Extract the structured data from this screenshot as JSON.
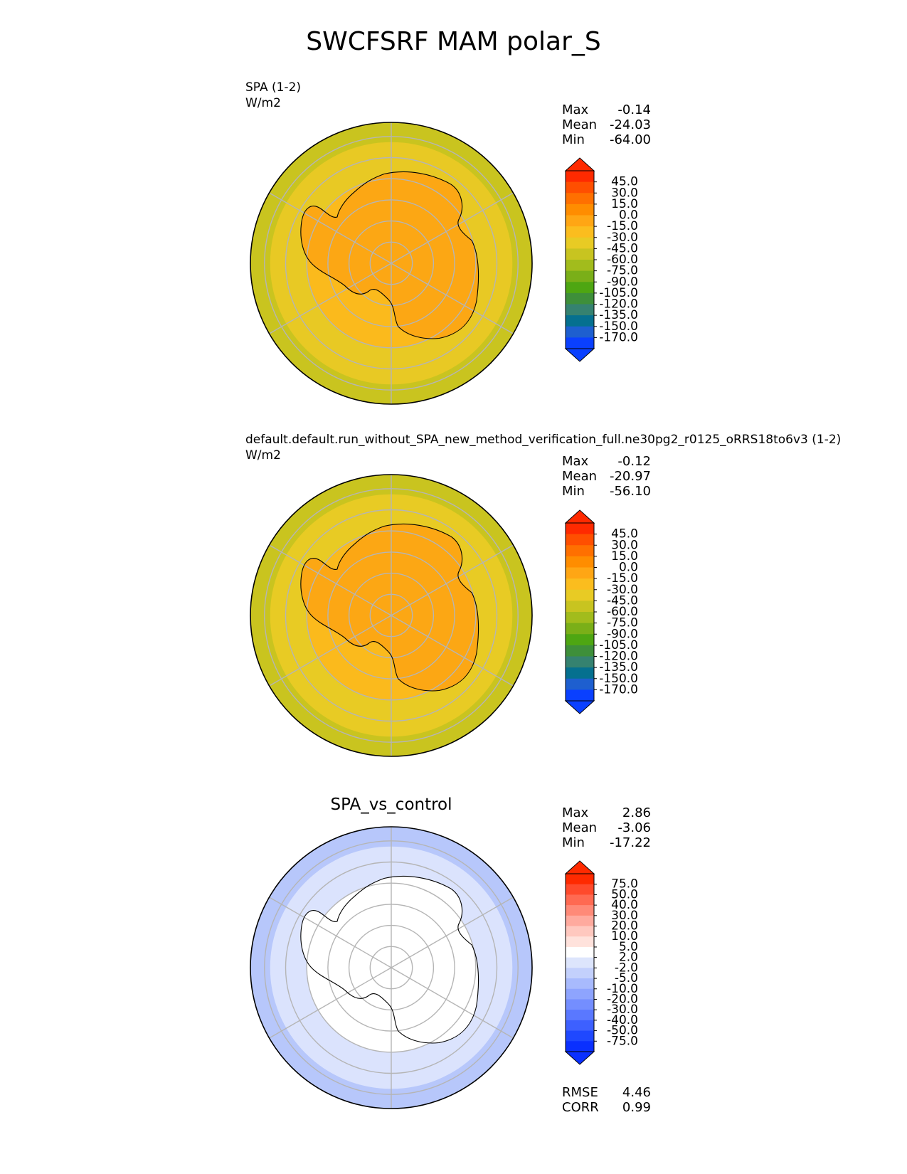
{
  "title": "SWCFSRF MAM polar_S",
  "panels": [
    {
      "label": "SPA (1-2)",
      "units": "W/m2",
      "stats": {
        "max_label": "Max",
        "max": "-0.14",
        "mean_label": "Mean",
        "mean": "-24.03",
        "min_label": "Min",
        "min": "-64.00"
      },
      "colorbar": {
        "ticks": [
          "45.0",
          "30.0",
          "15.0",
          "0.0",
          "-15.0",
          "-30.0",
          "-45.0",
          "-60.0",
          "-75.0",
          "-90.0",
          "-105.0",
          "-120.0",
          "-135.0",
          "-150.0",
          "-170.0"
        ],
        "colors": [
          "#ff2a00",
          "#ff4f00",
          "#ff7000",
          "#ff8d00",
          "#ffa614",
          "#fbbd1e",
          "#e8cb24",
          "#c8c420",
          "#a2bc1c",
          "#7aaf18",
          "#4ea612",
          "#3e8f3a",
          "#358270",
          "#05708f",
          "#1e5fcf",
          "#0a40ff"
        ]
      },
      "regions": {
        "outer": "#c9c41f",
        "middle": "#e8c924",
        "ring": "#fbba1c",
        "inner": "#fca714"
      }
    },
    {
      "label": "default.default.run_without_SPA_new_method_verification_full.ne30pg2_r0125_oRRS18to6v3 (1-2)",
      "units": "W/m2",
      "stats": {
        "max_label": "Max",
        "max": "-0.12",
        "mean_label": "Mean",
        "mean": "-20.97",
        "min_label": "Min",
        "min": "-56.10"
      },
      "colorbar": {
        "ticks": [
          "45.0",
          "30.0",
          "15.0",
          "0.0",
          "-15.0",
          "-30.0",
          "-45.0",
          "-60.0",
          "-75.0",
          "-90.0",
          "-105.0",
          "-120.0",
          "-135.0",
          "-150.0",
          "-170.0"
        ],
        "colors": [
          "#ff2a00",
          "#ff4f00",
          "#ff7000",
          "#ff8d00",
          "#ffa614",
          "#fbbd1e",
          "#e8cb24",
          "#c8c420",
          "#a2bc1c",
          "#7aaf18",
          "#4ea612",
          "#3e8f3a",
          "#358270",
          "#05708f",
          "#1e5fcf",
          "#0a40ff"
        ]
      },
      "regions": {
        "outer": "#c9c41f",
        "middle": "#e8cb24",
        "ring": "#fbba1c",
        "inner": "#fca714"
      }
    },
    {
      "title": "SPA_vs_control",
      "stats": {
        "max_label": "Max",
        "max": "2.86",
        "mean_label": "Mean",
        "mean": "-3.06",
        "min_label": "Min",
        "min": "-17.22"
      },
      "colorbar": {
        "ticks": [
          "75.0",
          "50.0",
          "40.0",
          "30.0",
          "20.0",
          "10.0",
          "5.0",
          "2.0",
          "-2.0",
          "-5.0",
          "-10.0",
          "-20.0",
          "-30.0",
          "-40.0",
          "-50.0",
          "-75.0"
        ],
        "colors": [
          "#ff2a00",
          "#ff4a2c",
          "#ff6a52",
          "#ff8a78",
          "#ffaa9e",
          "#ffc8bf",
          "#ffe2dc",
          "#ffffff",
          "#dde5fc",
          "#c3d0fc",
          "#a8bafd",
          "#8ea4fe",
          "#748eff",
          "#5a78ff",
          "#3d60ff",
          "#1f48ff",
          "#0a30ff"
        ]
      },
      "regions": {
        "outer": "#b7c7fb",
        "middle": "#dbe3fd",
        "ring": "#ffffff",
        "inner": "#ffffff"
      },
      "metrics": {
        "rmse_label": "RMSE",
        "rmse": "4.46",
        "corr_label": "CORR",
        "corr": "0.99"
      }
    }
  ],
  "chart_data": [
    {
      "type": "heatmap",
      "projection": "south polar stereographic",
      "title": "SPA (1-2)",
      "units": "W/m2",
      "max": -0.14,
      "mean": -24.03,
      "min": -64.0,
      "colorbar_levels": [
        -170,
        -150,
        -135,
        -120,
        -105,
        -90,
        -75,
        -60,
        -45,
        -30,
        -15,
        0,
        15,
        30,
        45
      ]
    },
    {
      "type": "heatmap",
      "projection": "south polar stereographic",
      "title": "default.default.run_without_SPA_new_method_verification_full.ne30pg2_r0125_oRRS18to6v3 (1-2)",
      "units": "W/m2",
      "max": -0.12,
      "mean": -20.97,
      "min": -56.1,
      "colorbar_levels": [
        -170,
        -150,
        -135,
        -120,
        -105,
        -90,
        -75,
        -60,
        -45,
        -30,
        -15,
        0,
        15,
        30,
        45
      ]
    },
    {
      "type": "heatmap",
      "projection": "south polar stereographic",
      "title": "SPA_vs_control",
      "max": 2.86,
      "mean": -3.06,
      "min": -17.22,
      "rmse": 4.46,
      "corr": 0.99,
      "colorbar_levels": [
        -75,
        -50,
        -40,
        -30,
        -20,
        -10,
        -5,
        -2,
        2,
        5,
        10,
        20,
        30,
        40,
        50,
        75
      ]
    }
  ]
}
